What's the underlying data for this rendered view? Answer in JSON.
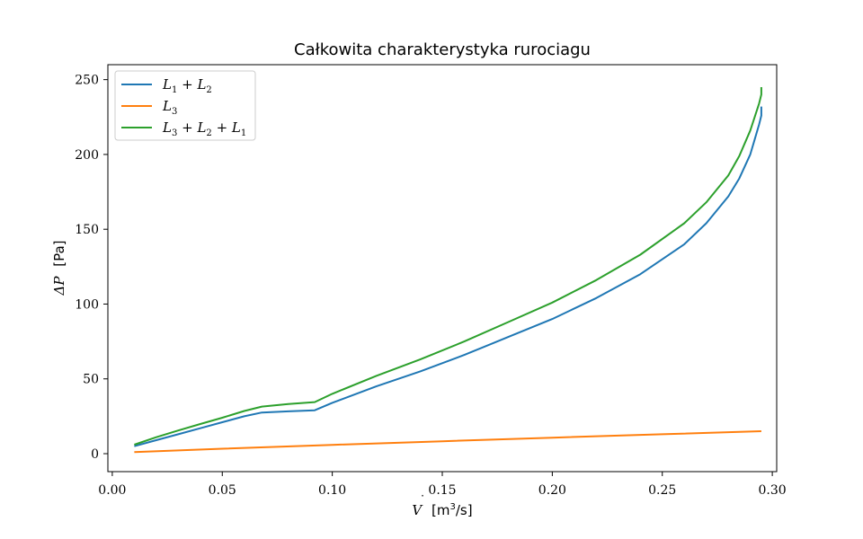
{
  "chart_data": {
    "type": "line",
    "title": "Całkowita charakterystyka rurociagu",
    "xlabel": {
      "symbol": "V",
      "unit_prefix": "[m",
      "unit_power": "3",
      "unit_suffix": "/s]"
    },
    "ylabel": {
      "symbol": "ΔP",
      "unit": "[Pa]"
    },
    "xlim": [
      -0.002,
      0.302
    ],
    "ylim": [
      -12,
      260
    ],
    "xticks": [
      0.0,
      0.05,
      0.1,
      0.15,
      0.2,
      0.25,
      0.3
    ],
    "xtick_labels": [
      "0.00",
      "0.05",
      "0.10",
      "0.15",
      "0.20",
      "0.25",
      "0.30"
    ],
    "yticks": [
      0,
      50,
      100,
      150,
      200,
      250
    ],
    "ytick_labels": [
      "0",
      "50",
      "100",
      "150",
      "200",
      "250"
    ],
    "grid": false,
    "legend_position": "top-left",
    "series": [
      {
        "name": "L1 + L2",
        "legend": {
          "base1": "L",
          "sub1": "1",
          "op1": " + ",
          "base2": "L",
          "sub2": "2"
        },
        "color": "#1f77b4",
        "x": [
          0.01,
          0.02,
          0.03,
          0.04,
          0.05,
          0.06,
          0.068,
          0.08,
          0.092,
          0.1,
          0.12,
          0.14,
          0.16,
          0.18,
          0.2,
          0.22,
          0.24,
          0.26,
          0.27,
          0.28,
          0.285,
          0.29,
          0.292,
          0.294,
          0.295,
          0.295
        ],
        "y": [
          5,
          9,
          13,
          17,
          21,
          25,
          27.5,
          28.3,
          29,
          34,
          45,
          55,
          66,
          78,
          90,
          104,
          120,
          140,
          154,
          172,
          184,
          200,
          210,
          220,
          226,
          232
        ]
      },
      {
        "name": "L3",
        "legend": {
          "base1": "L",
          "sub1": "3"
        },
        "color": "#ff7f0e",
        "x": [
          0.01,
          0.05,
          0.1,
          0.15,
          0.2,
          0.25,
          0.295
        ],
        "y": [
          1,
          3.3,
          5.9,
          8.3,
          10.7,
          13,
          15
        ]
      },
      {
        "name": "L3 + L2 + L1",
        "legend": {
          "base1": "L",
          "sub1": "3",
          "op1": " + ",
          "base2": "L",
          "sub2": "2",
          "op2": " + ",
          "base3": "L",
          "sub3": "1"
        },
        "color": "#2ca02c",
        "x": [
          0.01,
          0.02,
          0.03,
          0.04,
          0.05,
          0.06,
          0.068,
          0.08,
          0.092,
          0.1,
          0.12,
          0.14,
          0.16,
          0.18,
          0.2,
          0.22,
          0.24,
          0.26,
          0.27,
          0.28,
          0.285,
          0.29,
          0.292,
          0.294,
          0.295,
          0.295
        ],
        "y": [
          6,
          11,
          15.5,
          19.8,
          24,
          28.5,
          31.5,
          33.2,
          34.5,
          40,
          52,
          63,
          75,
          88,
          101,
          116,
          133,
          154,
          168,
          186,
          199,
          216,
          225,
          234,
          240,
          245
        ]
      }
    ]
  }
}
